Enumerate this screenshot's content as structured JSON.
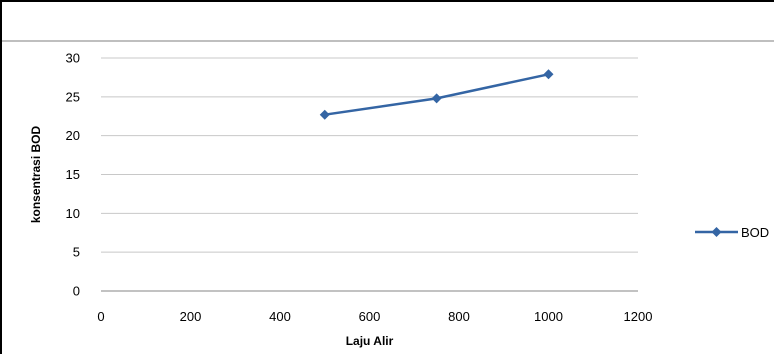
{
  "chart_data": {
    "type": "line",
    "title": "",
    "xlabel": "Laju Alir",
    "ylabel": "konsentrasi BOD",
    "xlim": [
      0,
      1200
    ],
    "ylim": [
      0,
      30
    ],
    "x_ticks": [
      "0",
      "200",
      "400",
      "600",
      "800",
      "1000",
      "1200"
    ],
    "y_ticks": [
      "0",
      "5",
      "10",
      "15",
      "20",
      "25",
      "30"
    ],
    "grid": "horizontal",
    "legend_position": "right",
    "series": [
      {
        "name": "BOD",
        "color": "#3465A4",
        "marker": "diamond",
        "x": [
          500,
          750,
          1000
        ],
        "y": [
          22.7,
          24.8,
          27.9
        ]
      }
    ]
  }
}
